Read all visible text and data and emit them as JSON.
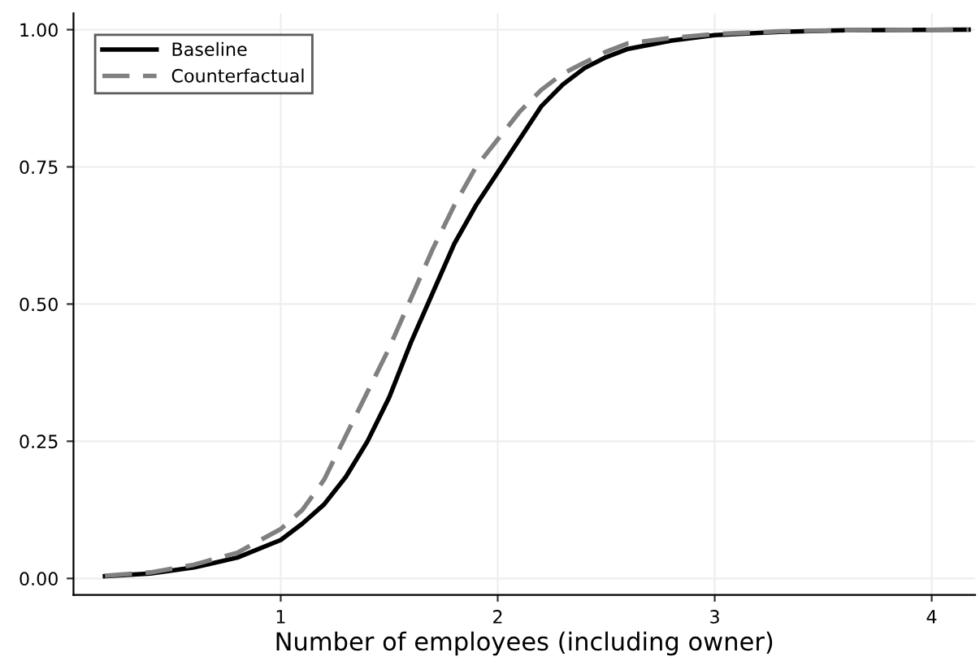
{
  "chart_data": {
    "type": "line",
    "xlabel": "Number of employees (including owner)",
    "xlim": [
      0.045,
      4.2
    ],
    "xticks": [
      1,
      2,
      3,
      4
    ],
    "ylim": [
      -0.03,
      1.03
    ],
    "yticks": [
      {
        "value": 0,
        "label": "0.00"
      },
      {
        "value": 0.25,
        "label": "0.25"
      },
      {
        "value": 0.5,
        "label": "0.50"
      },
      {
        "value": 0.75,
        "label": "0.75"
      },
      {
        "value": 1,
        "label": "1.00"
      }
    ],
    "grid": true,
    "legend": "top left",
    "series": [
      {
        "name": "Baseline",
        "color": "#000000",
        "line_style": "solid",
        "x": [
          0.19,
          0.4,
          0.6,
          0.8,
          1.0,
          1.1,
          1.2,
          1.3,
          1.4,
          1.5,
          1.6,
          1.7,
          1.8,
          1.9,
          2.0,
          2.1,
          2.2,
          2.3,
          2.4,
          2.5,
          2.6,
          2.8,
          3.0,
          3.3,
          3.6,
          4.17
        ],
        "values": [
          0.004,
          0.009,
          0.02,
          0.038,
          0.07,
          0.1,
          0.135,
          0.185,
          0.25,
          0.33,
          0.43,
          0.52,
          0.61,
          0.68,
          0.74,
          0.8,
          0.86,
          0.9,
          0.93,
          0.95,
          0.965,
          0.98,
          0.99,
          0.996,
          0.999,
          1.0
        ]
      },
      {
        "name": "Counterfactual",
        "color": "#808080",
        "line_style": "dashed",
        "x": [
          0.19,
          0.4,
          0.6,
          0.8,
          1.0,
          1.1,
          1.2,
          1.3,
          1.4,
          1.5,
          1.6,
          1.7,
          1.8,
          1.9,
          2.0,
          2.1,
          2.2,
          2.3,
          2.4,
          2.5,
          2.6,
          2.8,
          3.0,
          3.3,
          3.6,
          4.17
        ],
        "values": [
          0.005,
          0.011,
          0.025,
          0.047,
          0.09,
          0.125,
          0.18,
          0.26,
          0.34,
          0.42,
          0.51,
          0.6,
          0.68,
          0.75,
          0.8,
          0.85,
          0.89,
          0.92,
          0.94,
          0.96,
          0.975,
          0.985,
          0.992,
          0.997,
          0.999,
          1.0
        ]
      }
    ]
  }
}
